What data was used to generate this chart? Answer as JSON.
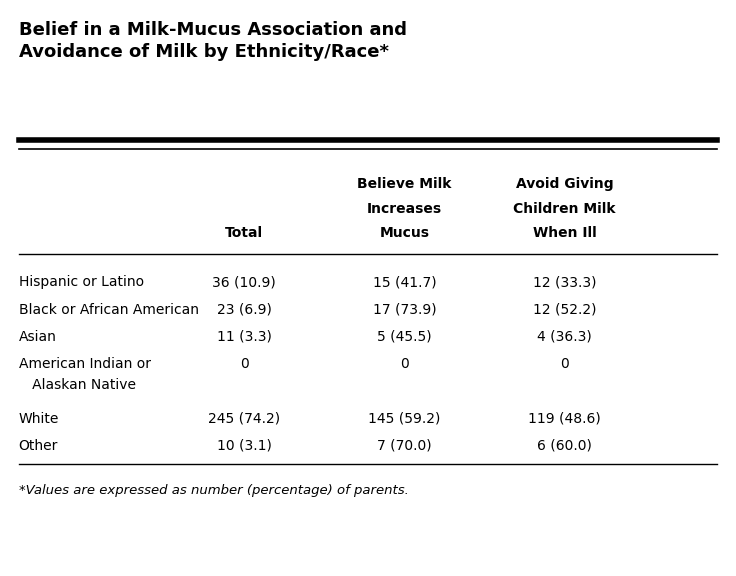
{
  "title": "Belief in a Milk-Mucus Association and\nAvoidance of Milk by Ethnicity/Race*",
  "col_headers_line1": [
    "",
    "Believe Milk",
    "Avoid Giving"
  ],
  "col_headers_line2": [
    "",
    "Increases",
    "Children Milk"
  ],
  "col_headers_line3": [
    "Total",
    "Mucus",
    "When Ill"
  ],
  "rows": [
    [
      "Hispanic or Latino",
      "36 (10.9)",
      "15 (41.7)",
      "12 (33.3)"
    ],
    [
      "Black or African American",
      "23 (6.9)",
      "17 (73.9)",
      "12 (52.2)"
    ],
    [
      "Asian",
      "11 (3.3)",
      "5 (45.5)",
      "4 (36.3)"
    ],
    [
      "American Indian or",
      "0",
      "0",
      "0"
    ],
    [
      "   Alaskan Native",
      "",
      "",
      ""
    ],
    [
      "White",
      "245 (74.2)",
      "145 (59.2)",
      "119 (48.6)"
    ],
    [
      "Other",
      "10 (3.1)",
      "7 (70.0)",
      "6 (60.0)"
    ]
  ],
  "footnote": "*Values are expressed as number (percentage) of parents.",
  "bg_color": "#ffffff",
  "text_color": "#000000",
  "header_fontsize": 10,
  "row_fontsize": 10,
  "title_fontsize": 13
}
